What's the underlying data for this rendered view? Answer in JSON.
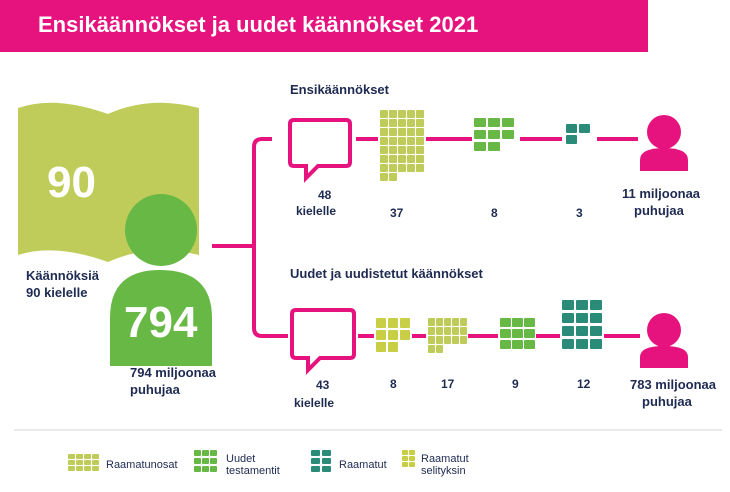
{
  "title": "Ensikäännökset ja uudet käännökset 2021",
  "colors": {
    "magenta": "#e6137e",
    "light_green": "#c0cc5a",
    "green": "#68b845",
    "teal": "#2a8c78",
    "dark_text": "#1e2a52",
    "yellow_green": "#c8cf44"
  },
  "left": {
    "book_number": "90",
    "book_label_line1": "Käännöksiä",
    "book_label_line2": "90 kielelle",
    "person_number": "794",
    "person_label_line1": "794 miljoonaa",
    "person_label_line2": "puhujaa"
  },
  "top_branch": {
    "heading": "Ensikäännökset",
    "languages_count": "48",
    "languages_label": "kielelle",
    "portions_count": "37",
    "new_testaments_count": "8",
    "bibles_count": "3",
    "speakers_line1": "11 miljoonaa",
    "speakers_line2": "puhujaa"
  },
  "bottom_branch": {
    "heading": "Uudet ja uudistetut käännökset",
    "languages_count": "43",
    "languages_label": "kielelle",
    "study_bibles_count": "8",
    "portions_count": "17",
    "new_testaments_count": "9",
    "bibles_count": "12",
    "speakers_line1": "783 miljoonaa",
    "speakers_line2": "puhujaa"
  },
  "legend": {
    "portions_label": "Raamatunosat",
    "new_testaments_line1": "Uudet",
    "new_testaments_line2": "testamentit",
    "bibles_label": "Raamatut",
    "study_bibles_line1": "Raamatut",
    "study_bibles_line2": "selityksin"
  },
  "icons": [
    "open-book-icon",
    "person-icon",
    "speech-bubble-icon",
    "book-stack-icon"
  ]
}
